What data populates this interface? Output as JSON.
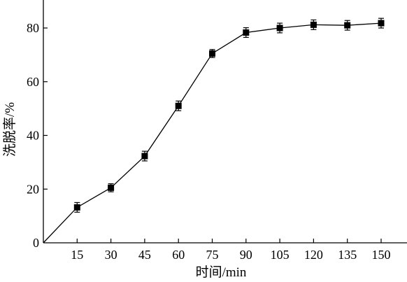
{
  "chart_data": {
    "type": "line",
    "title": "",
    "xlabel": "时间/min",
    "ylabel": "洗脱率/%",
    "xlim": [
      0,
      160
    ],
    "ylim": [
      0,
      90
    ],
    "x_ticks": [
      15,
      30,
      45,
      60,
      75,
      90,
      105,
      120,
      135,
      150
    ],
    "y_ticks": [
      0,
      20,
      40,
      60,
      80
    ],
    "grid": false,
    "legend": "none",
    "series": [
      {
        "x": [
          0,
          15,
          30,
          45,
          60,
          75,
          90,
          105,
          120,
          135,
          150
        ],
        "y": [
          0,
          13.2,
          20.5,
          32.3,
          51.0,
          70.5,
          78.3,
          80.0,
          81.2,
          81.0,
          81.8
        ],
        "error": [
          0,
          1.8,
          1.5,
          1.8,
          1.8,
          1.5,
          1.8,
          1.8,
          1.8,
          1.8,
          1.8
        ],
        "marker": "square",
        "marker_from_index": 1,
        "color": "#000000"
      }
    ]
  }
}
